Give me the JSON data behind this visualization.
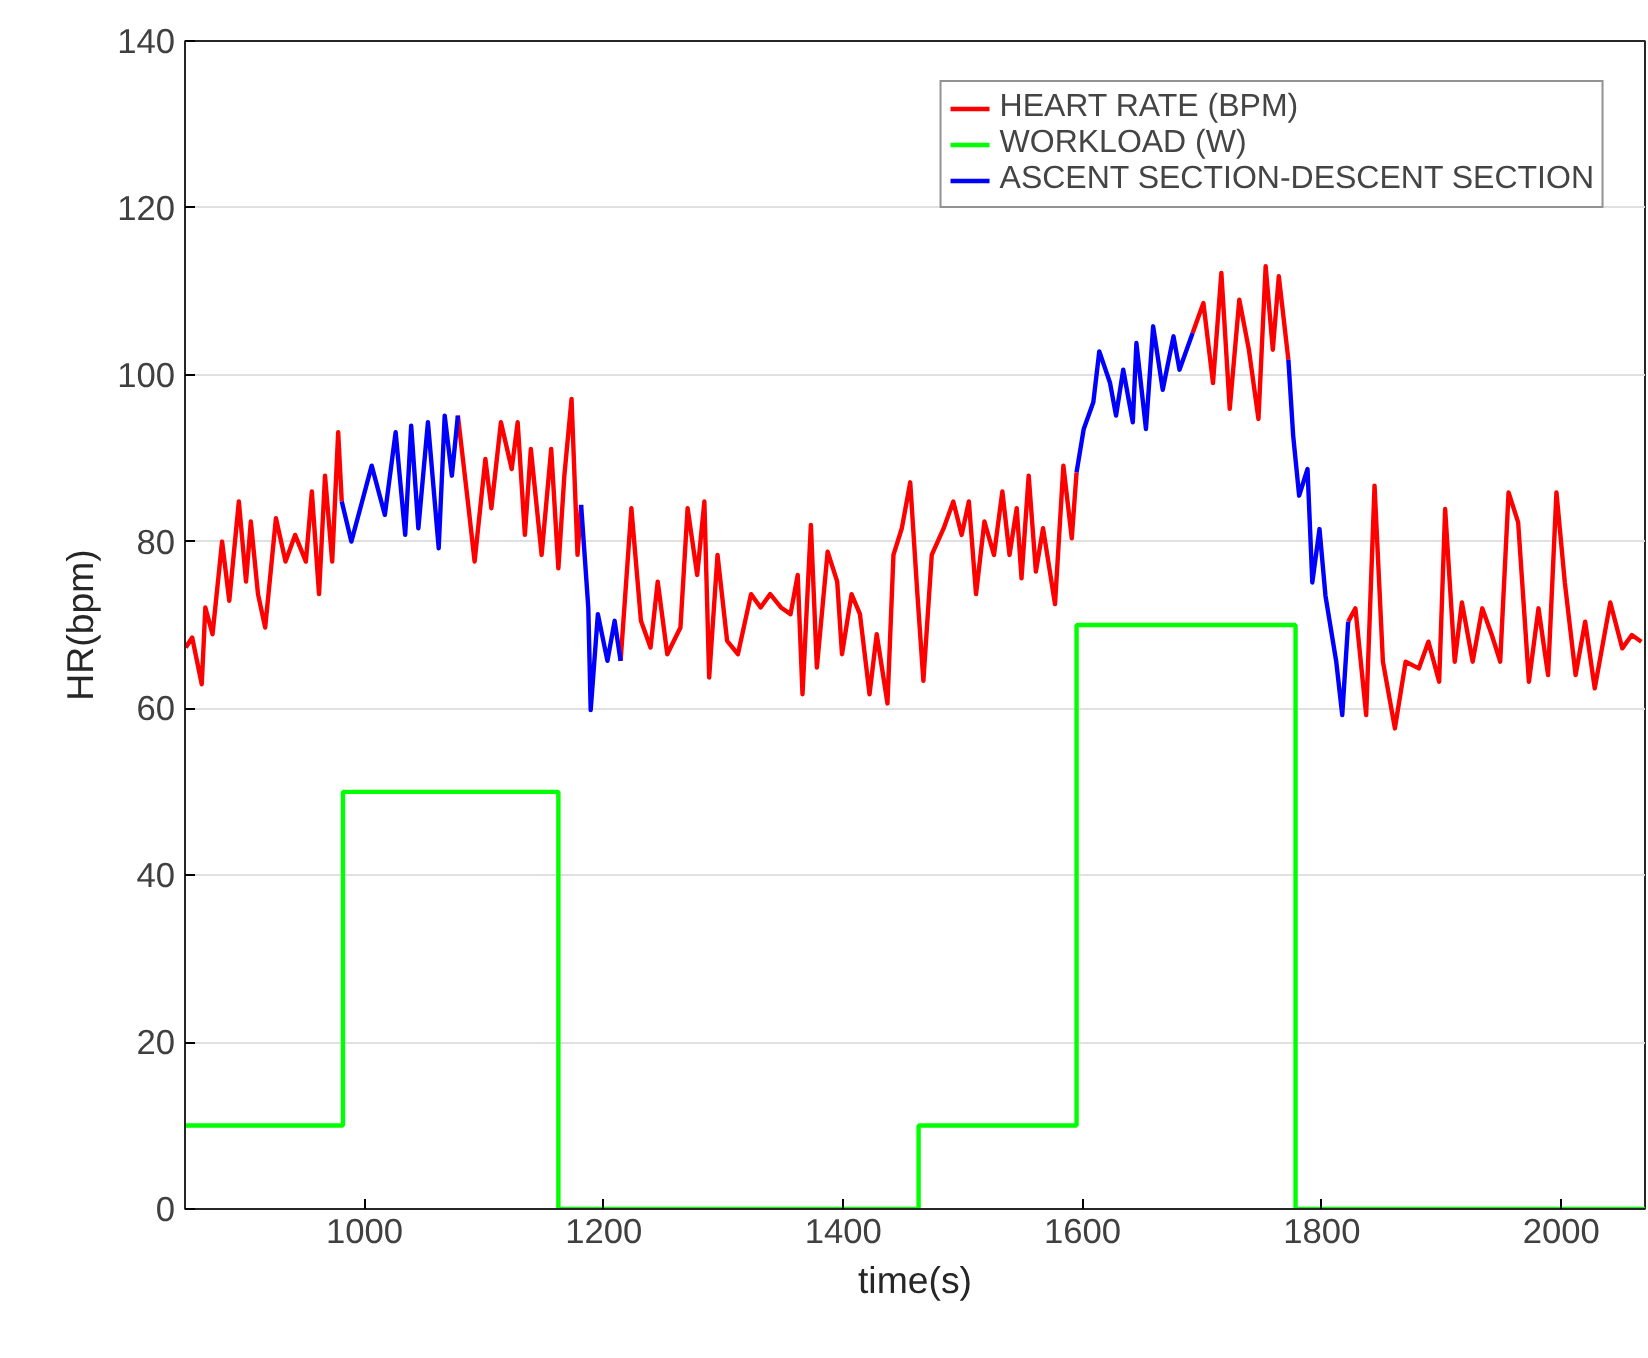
{
  "chart_data": {
    "type": "line",
    "xlabel": "time(s)",
    "ylabel": "HR(bpm)",
    "xlim": [
      850,
      2070
    ],
    "ylim": [
      0,
      140
    ],
    "xticks": [
      1000,
      1200,
      1400,
      1600,
      1800,
      2000
    ],
    "yticks": [
      0,
      20,
      40,
      60,
      80,
      100,
      120,
      140
    ],
    "grid": "y",
    "legend": "top right",
    "line_style": "solid",
    "marker": "none",
    "series": [
      {
        "name": "HEART RATE (BPM)",
        "color": "#ff0000",
        "x": [
          850.6,
          856,
          864,
          867,
          873,
          881,
          887,
          895,
          901,
          905,
          911,
          917,
          926,
          934,
          942,
          951,
          956,
          962,
          967,
          973,
          978,
          981,
          1030,
          1078,
          1087,
          1092,
          1101,
          1106,
          1114,
          1123,
          1128,
          1134,
          1139,
          1148,
          1156,
          1162,
          1167,
          1173,
          1178,
          1181,
          1200,
          1214,
          1223,
          1231,
          1239,
          1245,
          1253,
          1264,
          1270,
          1278,
          1284,
          1288,
          1295,
          1303,
          1312,
          1323,
          1331,
          1339,
          1348,
          1356,
          1362,
          1366,
          1373,
          1378,
          1387,
          1395,
          1399,
          1407,
          1414,
          1422,
          1428,
          1437,
          1442,
          1449,
          1456,
          1462,
          1467,
          1474,
          1484,
          1492,
          1499,
          1505,
          1511,
          1518,
          1526,
          1533,
          1539,
          1545,
          1549,
          1555,
          1561,
          1567,
          1577,
          1584,
          1591,
          1595,
          1640,
          1692,
          1701,
          1709,
          1716,
          1723,
          1731,
          1739,
          1747,
          1753,
          1759,
          1764,
          1772,
          1800,
          1822,
          1828,
          1837,
          1844,
          1851,
          1861,
          1870,
          1881,
          1889,
          1898,
          1903,
          1911,
          1917,
          1926,
          1934,
          1942,
          1949,
          1956,
          1964,
          1973,
          1981,
          1989,
          1996,
          2003,
          2012,
          2020,
          2028,
          2041,
          2051,
          2059,
          2067
        ],
        "values": [
          67.3,
          68.5,
          62.9,
          72.1,
          68.9,
          80,
          72.9,
          84.8,
          75.2,
          82.4,
          73.7,
          69.7,
          82.8,
          77.6,
          80.8,
          77.6,
          86,
          73.7,
          87.9,
          77.6,
          93.1,
          84.8,
          null,
          95.1,
          84,
          77.6,
          89.9,
          84,
          94.3,
          88.7,
          94.3,
          80.8,
          91.1,
          78.4,
          91.1,
          76.8,
          87.9,
          97.1,
          78.4,
          84.4,
          null,
          65.7,
          84,
          70.5,
          67.3,
          75.2,
          66.5,
          69.7,
          84,
          76,
          84.8,
          63.7,
          78.4,
          68.1,
          66.5,
          73.7,
          72.1,
          73.7,
          72.1,
          71.3,
          76,
          61.7,
          82,
          64.9,
          78.8,
          75.2,
          66.5,
          73.7,
          71.3,
          61.7,
          68.9,
          60.6,
          78.4,
          81.6,
          87.1,
          73.7,
          63.3,
          78.4,
          81.6,
          84.8,
          80.8,
          84.8,
          73.7,
          82.4,
          78.4,
          86,
          78.4,
          84,
          75.6,
          87.9,
          76.4,
          81.6,
          72.5,
          89.1,
          80.4,
          88.3,
          null,
          105,
          108.6,
          99,
          112.2,
          95.9,
          109,
          103,
          94.7,
          113,
          103,
          111.8,
          101.8,
          null,
          70.4,
          72,
          59.2,
          86.7,
          65.6,
          57.6,
          65.6,
          64.8,
          68,
          63.2,
          83.9,
          65.6,
          72.7,
          65.6,
          72,
          68.8,
          65.6,
          85.9,
          82.3,
          63.2,
          72,
          64,
          85.9,
          75.1,
          64,
          70.4,
          62.4,
          72.7,
          67.2,
          68.8,
          68
        ]
      },
      {
        "name": "WORKLOAD (W)",
        "color": "#00ff00",
        "type": "step",
        "x": [
          850,
          982,
          1162,
          1463,
          1595,
          1778,
          2070
        ],
        "values": [
          10,
          50,
          0,
          10,
          70,
          0,
          0
        ]
      },
      {
        "name": "ASCENT SECTION-DESCENT SECTION",
        "color": "#0000ff",
        "x": [
          981,
          989,
          998,
          1006,
          1017,
          1026,
          1034,
          1039,
          1045,
          1053,
          1062,
          1067,
          1073,
          1078,
          1130,
          1181,
          1187,
          1189,
          1195,
          1203,
          1209,
          1214,
          1400,
          1595,
          1601,
          1609,
          1614,
          1623,
          1628,
          1634,
          1642,
          1645,
          1653,
          1659,
          1667,
          1676,
          1681,
          1692,
          1730,
          1772,
          1776,
          1781,
          1788,
          1792,
          1798,
          1803,
          1812,
          1817,
          1822
        ],
        "values": [
          84.8,
          80,
          84.8,
          89.1,
          83.2,
          93.1,
          80.8,
          93.9,
          81.6,
          94.3,
          79.2,
          95.1,
          87.9,
          95.1,
          null,
          84.4,
          72.1,
          59.8,
          71.3,
          65.7,
          70.5,
          65.7,
          null,
          88.3,
          93.5,
          96.7,
          102.8,
          99,
          95.1,
          100.6,
          94.3,
          103.8,
          93.5,
          105.8,
          98.2,
          104.6,
          100.6,
          105,
          null,
          101.8,
          92.7,
          85.5,
          88.7,
          75.1,
          81.5,
          73.5,
          65.6,
          59.2,
          70.4
        ]
      }
    ]
  }
}
